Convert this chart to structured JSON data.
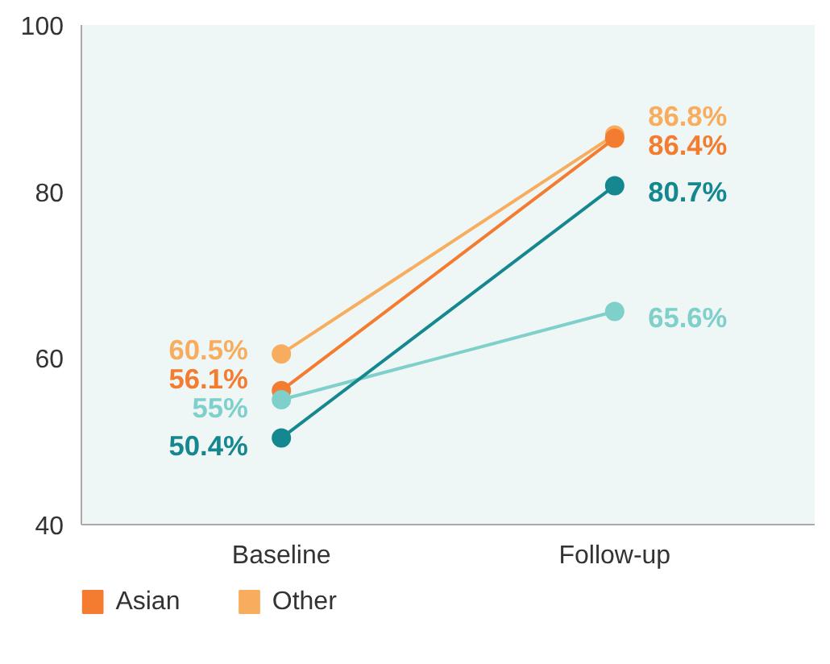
{
  "chart_data": {
    "type": "line",
    "categories": [
      "Baseline",
      "Follow-up"
    ],
    "ylim": [
      40,
      100
    ],
    "yticks": [
      40,
      60,
      80,
      100
    ],
    "grid": false,
    "legend": "bottom",
    "marker": "circle",
    "line_style": "solid",
    "series": [
      {
        "name": "Other",
        "color": "#f8ad5e",
        "values": [
          60.5,
          86.8
        ],
        "value_labels": [
          "60.5%",
          "86.8%"
        ]
      },
      {
        "name": "Asian",
        "color": "#f47c30",
        "values": [
          56.1,
          86.4
        ],
        "value_labels": [
          "56.1%",
          "86.4%"
        ]
      },
      {
        "color": "#7fcfcb",
        "values": [
          55,
          65.6
        ],
        "value_labels": [
          "55%",
          "65.6%"
        ]
      },
      {
        "color": "#15878f",
        "values": [
          50.4,
          80.7
        ],
        "value_labels": [
          "50.4%",
          "80.7%"
        ]
      }
    ]
  }
}
